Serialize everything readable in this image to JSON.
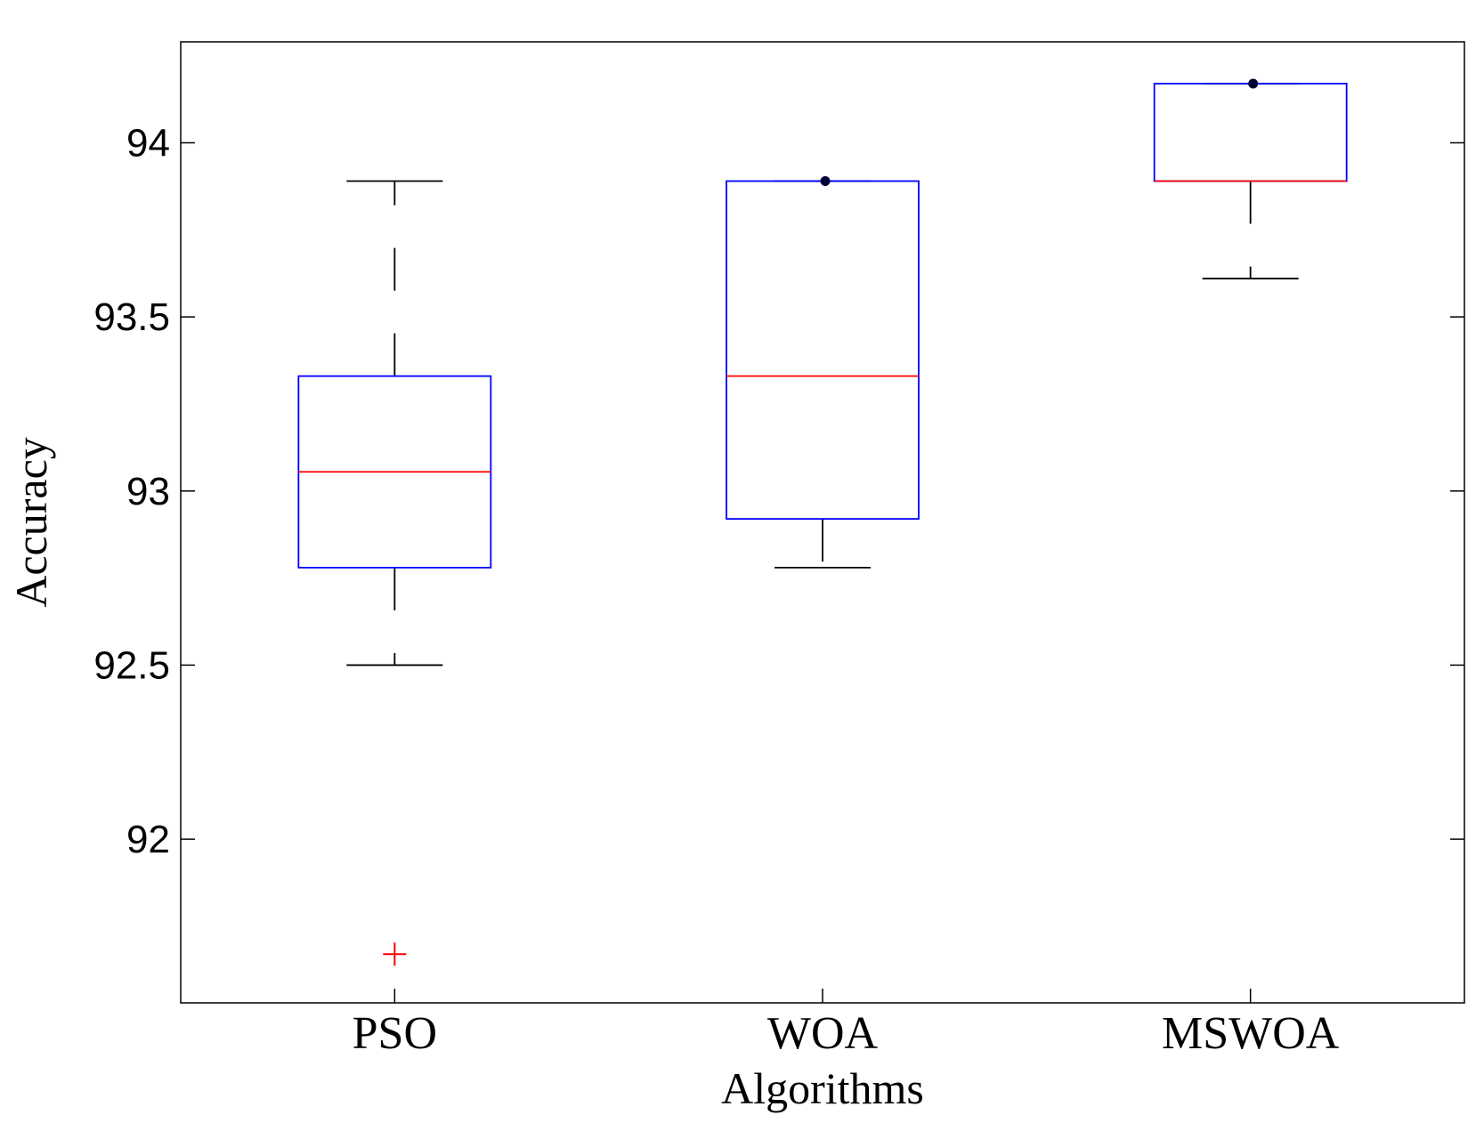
{
  "chart_data": {
    "type": "boxplot",
    "title": "",
    "xlabel": "Algorithms",
    "ylabel": "Accuracy",
    "ylim": [
      91.53,
      94.29
    ],
    "yticks": [
      {
        "value": 92,
        "label": "92"
      },
      {
        "value": 92.5,
        "label": "92.5"
      },
      {
        "value": 93,
        "label": "93"
      },
      {
        "value": 93.5,
        "label": "93.5"
      },
      {
        "value": 94,
        "label": "94"
      }
    ],
    "grid": false,
    "categories": [
      "PSO",
      "WOA",
      "MSWOA"
    ],
    "boxes": [
      {
        "name": "PSO",
        "whisker_low": 92.5,
        "q1": 92.78,
        "median": 93.055,
        "q3": 93.33,
        "whisker_high": 93.89,
        "outliers": [
          91.67
        ],
        "dots": []
      },
      {
        "name": "WOA",
        "whisker_low": 92.78,
        "q1": 92.92,
        "median": 93.33,
        "q3": 93.89,
        "whisker_high": 93.89,
        "outliers": [],
        "dots": [
          93.89
        ]
      },
      {
        "name": "MSWOA",
        "whisker_low": 93.61,
        "q1": 93.89,
        "median": 93.89,
        "q3": 94.17,
        "whisker_high": 94.17,
        "outliers": [],
        "dots": [
          94.17
        ]
      }
    ],
    "colors": {
      "box": "#0000ff",
      "median": "#ff0000",
      "whisker": "#000000",
      "outlier": "#ff0000",
      "dot": "#000033",
      "axes": "#000000"
    }
  }
}
